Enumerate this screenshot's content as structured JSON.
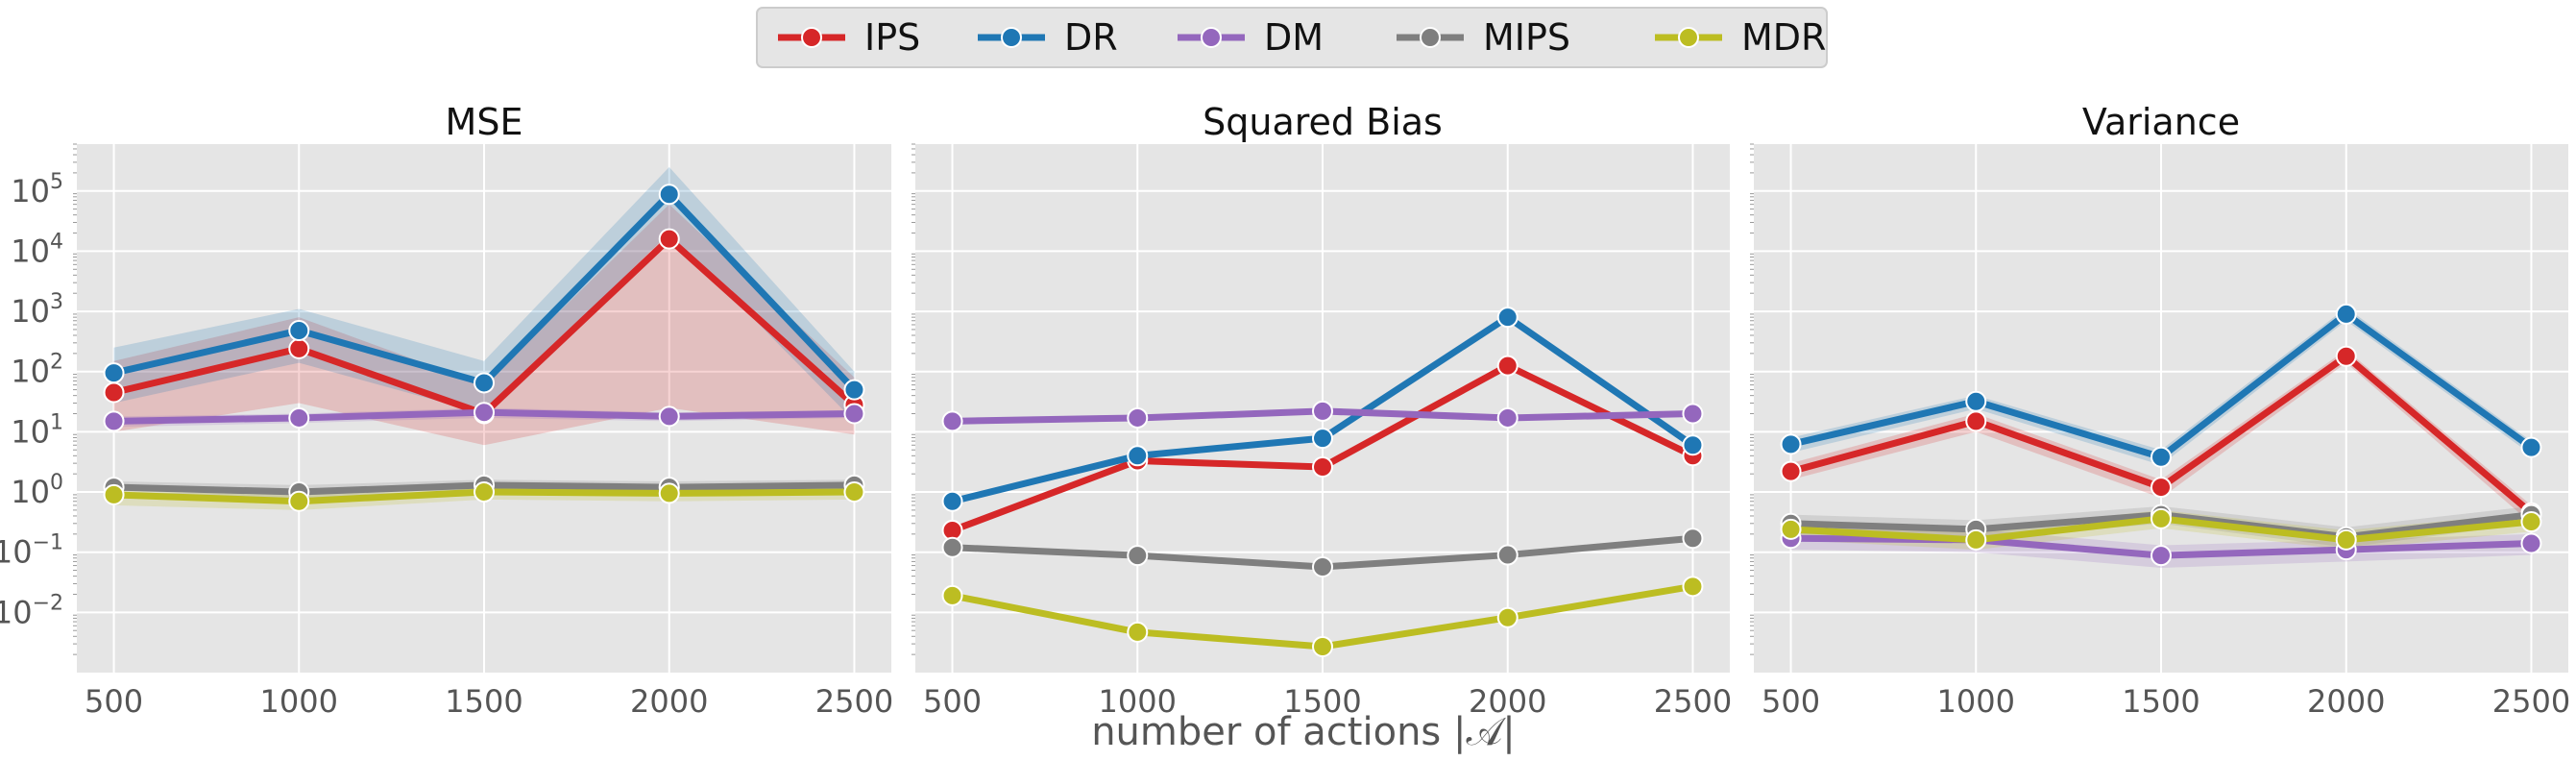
{
  "legend": [
    {
      "name": "IPS",
      "color": "#d62728"
    },
    {
      "name": "DR",
      "color": "#1f77b4"
    },
    {
      "name": "DM",
      "color": "#9467bd"
    },
    {
      "name": "MIPS",
      "color": "#7f7f7f"
    },
    {
      "name": "MDR",
      "color": "#bcbd22"
    }
  ],
  "xlabel": "number of actions |𝒜|",
  "chart_data": [
    {
      "type": "line",
      "title": "MSE",
      "x": [
        500,
        1000,
        1500,
        2000,
        2500
      ],
      "xticks": [
        "500",
        "1000",
        "1500",
        "2000",
        "2500"
      ],
      "yscale": "log",
      "ylim": [
        0.001,
        600000
      ],
      "yticks": [
        {
          "value": 0.01,
          "base": "10",
          "exp": "−2"
        },
        {
          "value": 0.1,
          "base": "10",
          "exp": "−1"
        },
        {
          "value": 1,
          "base": "10",
          "exp": "0"
        },
        {
          "value": 10,
          "base": "10",
          "exp": "1"
        },
        {
          "value": 100,
          "base": "10",
          "exp": "2"
        },
        {
          "value": 1000,
          "base": "10",
          "exp": "3"
        },
        {
          "value": 10000,
          "base": "10",
          "exp": "4"
        },
        {
          "value": 100000,
          "base": "10",
          "exp": "5"
        }
      ],
      "series": [
        {
          "name": "IPS",
          "color": "#d62728",
          "values": [
            45,
            240,
            20,
            16000,
            28
          ],
          "lower": [
            10,
            30,
            6,
            25,
            9
          ],
          "upper": [
            150,
            800,
            60,
            60000,
            80
          ]
        },
        {
          "name": "DR",
          "color": "#1f77b4",
          "values": [
            95,
            480,
            65,
            88000,
            50
          ],
          "lower": [
            30,
            140,
            20,
            20000,
            15
          ],
          "upper": [
            250,
            1100,
            150,
            250000,
            100
          ]
        },
        {
          "name": "DM",
          "color": "#9467bd",
          "values": [
            15,
            17,
            21,
            18,
            20
          ],
          "lower": [
            12,
            14,
            17,
            15,
            17
          ],
          "upper": [
            18,
            20,
            25,
            21,
            23
          ]
        },
        {
          "name": "MIPS",
          "color": "#7f7f7f",
          "values": [
            1.2,
            1.0,
            1.3,
            1.2,
            1.3
          ],
          "lower": [
            0.9,
            0.75,
            1.0,
            0.9,
            1.0
          ],
          "upper": [
            1.5,
            1.3,
            1.6,
            1.5,
            1.6
          ]
        },
        {
          "name": "MDR",
          "color": "#bcbd22",
          "values": [
            0.9,
            0.7,
            1.0,
            0.95,
            1.0
          ],
          "lower": [
            0.6,
            0.5,
            0.75,
            0.7,
            0.75
          ],
          "upper": [
            1.2,
            0.95,
            1.3,
            1.2,
            1.3
          ]
        }
      ]
    },
    {
      "type": "line",
      "title": "Squared Bias",
      "x": [
        500,
        1000,
        1500,
        2000,
        2500
      ],
      "xticks": [
        "500",
        "1000",
        "1500",
        "2000",
        "2500"
      ],
      "yscale": "log",
      "ylim": [
        0.001,
        600000
      ],
      "yticks": [],
      "series": [
        {
          "name": "IPS",
          "color": "#d62728",
          "values": [
            0.23,
            3.3,
            2.6,
            125,
            4
          ]
        },
        {
          "name": "DR",
          "color": "#1f77b4",
          "values": [
            0.7,
            4,
            7.8,
            800,
            6
          ]
        },
        {
          "name": "DM",
          "color": "#9467bd",
          "values": [
            15,
            17,
            22,
            17,
            20
          ]
        },
        {
          "name": "MIPS",
          "color": "#7f7f7f",
          "values": [
            0.12,
            0.088,
            0.057,
            0.09,
            0.17
          ]
        },
        {
          "name": "MDR",
          "color": "#bcbd22",
          "values": [
            0.019,
            0.0047,
            0.0027,
            0.0082,
            0.027
          ]
        }
      ]
    },
    {
      "type": "line",
      "title": "Variance",
      "x": [
        500,
        1000,
        1500,
        2000,
        2500
      ],
      "xticks": [
        "500",
        "1000",
        "1500",
        "2000",
        "2500"
      ],
      "yscale": "log",
      "ylim": [
        0.001,
        600000
      ],
      "yticks": [],
      "series": [
        {
          "name": "IPS",
          "color": "#d62728",
          "values": [
            2.2,
            15,
            1.2,
            180,
            0.45
          ],
          "lower": [
            1.6,
            10,
            0.8,
            140,
            0.3
          ],
          "upper": [
            3,
            20,
            1.6,
            230,
            0.6
          ]
        },
        {
          "name": "DR",
          "color": "#1f77b4",
          "values": [
            6.2,
            32,
            3.8,
            900,
            5.5
          ],
          "lower": [
            4.5,
            24,
            2.8,
            700,
            4.2
          ],
          "upper": [
            8,
            40,
            5,
            1150,
            7
          ]
        },
        {
          "name": "DM",
          "color": "#9467bd",
          "values": [
            0.17,
            0.16,
            0.088,
            0.11,
            0.14
          ],
          "lower": [
            0.11,
            0.1,
            0.055,
            0.07,
            0.09
          ],
          "upper": [
            0.25,
            0.24,
            0.13,
            0.16,
            0.2
          ]
        },
        {
          "name": "MIPS",
          "color": "#7f7f7f",
          "values": [
            0.3,
            0.24,
            0.42,
            0.18,
            0.42
          ],
          "lower": [
            0.2,
            0.16,
            0.3,
            0.12,
            0.3
          ],
          "upper": [
            0.42,
            0.34,
            0.58,
            0.26,
            0.58
          ]
        },
        {
          "name": "MDR",
          "color": "#bcbd22",
          "values": [
            0.24,
            0.16,
            0.36,
            0.16,
            0.32
          ],
          "lower": [
            0.16,
            0.11,
            0.25,
            0.11,
            0.22
          ],
          "upper": [
            0.34,
            0.23,
            0.5,
            0.23,
            0.45
          ]
        }
      ]
    }
  ]
}
